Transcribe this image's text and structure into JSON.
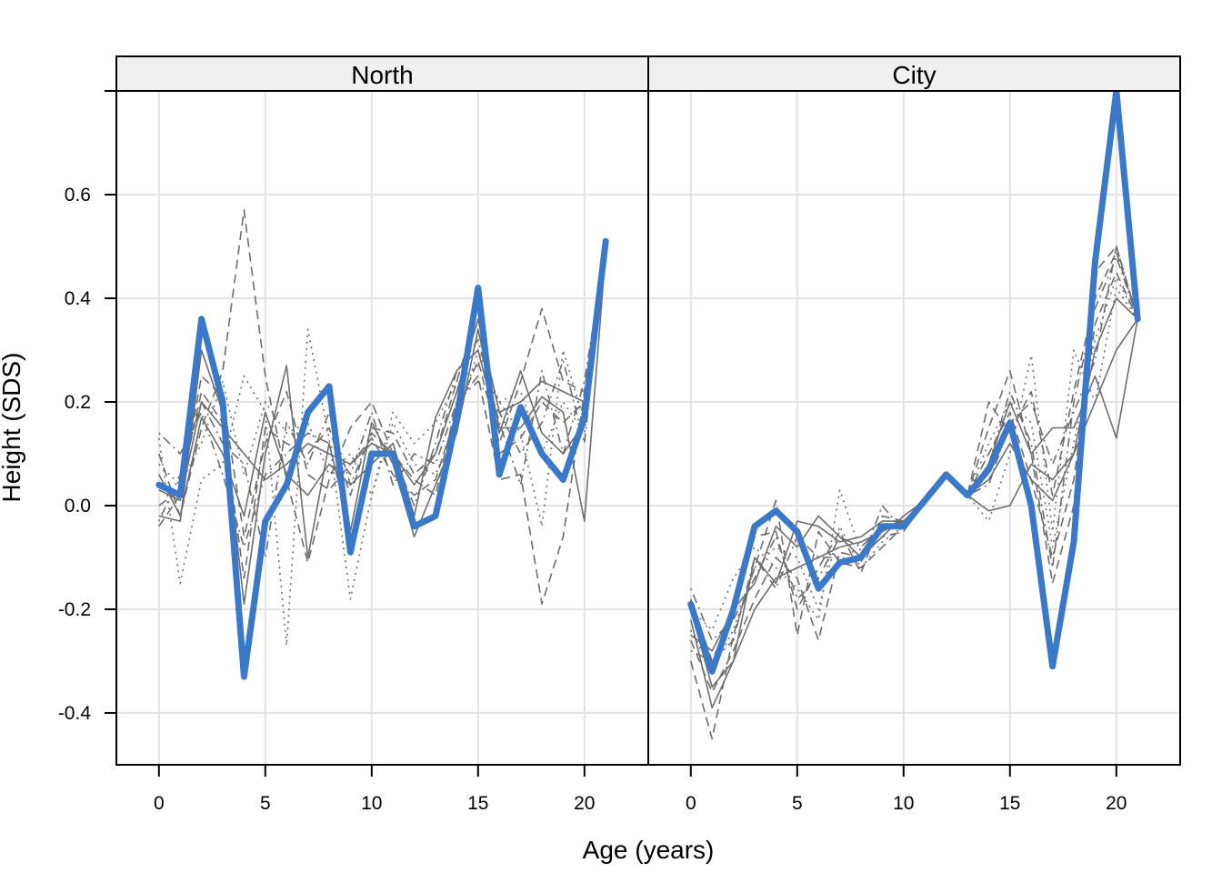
{
  "chart_data": {
    "type": "line",
    "xlabel": "Age (years)",
    "ylabel": "Height (SDS)",
    "xlim": [
      -2,
      23
    ],
    "ylim": [
      -0.5,
      0.8
    ],
    "x_ticks": [
      0,
      5,
      10,
      15,
      20
    ],
    "x_tick_labels": [
      "0",
      "5",
      "10",
      "15",
      "20"
    ],
    "y_ticks": [
      -0.4,
      -0.2,
      0.0,
      0.2,
      0.4,
      0.6
    ],
    "y_tick_labels": [
      "-0.4",
      "-0.2",
      "0.0",
      "0.2",
      "0.4",
      "0.6"
    ],
    "grid": true,
    "colors": {
      "highlight": "#3A78C9",
      "background_lines": "#6E6E6E",
      "grid": "#E3E3E3",
      "strip": "#F0F0F0"
    },
    "panels": [
      {
        "title": "North",
        "highlight": {
          "x": [
            0,
            1,
            2,
            3,
            4,
            5,
            6,
            7,
            8,
            9,
            10,
            11,
            12,
            13,
            14,
            15,
            16,
            17,
            18,
            19,
            20,
            21
          ],
          "y": [
            0.04,
            0.02,
            0.36,
            0.2,
            -0.33,
            -0.03,
            0.04,
            0.18,
            0.23,
            -0.09,
            0.1,
            0.1,
            -0.04,
            -0.02,
            0.17,
            0.42,
            0.06,
            0.19,
            0.1,
            0.05,
            0.17,
            0.51
          ]
        },
        "imputations": [
          {
            "style": "solid",
            "y": [
              0.03,
              0.01,
              0.2,
              0.15,
              0.1,
              0.05,
              0.08,
              0.12,
              0.1,
              0.08,
              0.12,
              0.1,
              0.04,
              0.1,
              0.22,
              0.36,
              0.18,
              0.2,
              0.24,
              0.22,
              0.2,
              0.49
            ]
          },
          {
            "style": "solid",
            "y": [
              -0.02,
              -0.03,
              0.3,
              0.18,
              -0.19,
              0.1,
              0.27,
              -0.1,
              0.12,
              -0.05,
              0.16,
              0.08,
              -0.06,
              0.04,
              0.14,
              0.34,
              0.15,
              0.15,
              0.21,
              0.18,
              -0.03,
              0.49
            ]
          },
          {
            "style": "solid",
            "y": [
              0.06,
              -0.02,
              0.17,
              0.1,
              -0.02,
              0.18,
              0.06,
              0.02,
              0.08,
              0.04,
              0.08,
              0.12,
              -0.02,
              0.17,
              0.26,
              0.3,
              0.14,
              0.26,
              0.14,
              0.1,
              0.16,
              0.5
            ]
          },
          {
            "style": "dashed",
            "y": [
              0.1,
              -0.02,
              0.15,
              0.26,
              0.57,
              0.25,
              0.05,
              -0.11,
              0.05,
              0.15,
              0.2,
              0.1,
              0.05,
              0.02,
              0.2,
              0.25,
              0.05,
              0.06,
              -0.19,
              -0.06,
              0.22,
              0.5
            ]
          },
          {
            "style": "dashed",
            "y": [
              0.0,
              0.03,
              0.22,
              0.16,
              -0.14,
              0.15,
              0.12,
              0.1,
              0.15,
              0.02,
              0.15,
              0.14,
              0.06,
              0.1,
              0.24,
              0.38,
              0.1,
              0.13,
              0.2,
              0.16,
              0.2,
              0.49
            ]
          },
          {
            "style": "dashed",
            "y": [
              -0.04,
              0.02,
              0.25,
              0.21,
              -0.06,
              0.12,
              0.22,
              0.06,
              0.03,
              0.08,
              0.13,
              0.06,
              0.02,
              0.05,
              0.18,
              0.28,
              0.12,
              0.24,
              0.38,
              0.24,
              0.22,
              0.5
            ]
          },
          {
            "style": "dotted",
            "y": [
              0.13,
              -0.15,
              0.05,
              0.08,
              0.25,
              0.18,
              -0.27,
              0.34,
              0.13,
              -0.18,
              0.02,
              0.18,
              0.12,
              0.16,
              0.24,
              0.27,
              0.2,
              0.14,
              -0.04,
              0.3,
              0.16,
              0.5
            ]
          },
          {
            "style": "dotted",
            "y": [
              0.08,
              0.04,
              0.12,
              0.24,
              0.06,
              0.2,
              0.14,
              0.16,
              0.06,
              0.1,
              0.02,
              0.16,
              0.08,
              0.06,
              0.16,
              0.3,
              0.2,
              0.22,
              0.1,
              0.2,
              0.14,
              0.5
            ]
          },
          {
            "style": "dotdash",
            "y": [
              0.14,
              0.1,
              0.18,
              0.06,
              -0.08,
              0.06,
              0.1,
              0.14,
              0.12,
              0.06,
              0.18,
              0.04,
              0.1,
              0.08,
              0.2,
              0.24,
              0.18,
              0.1,
              0.16,
              0.28,
              0.12,
              0.5
            ]
          },
          {
            "style": "dotdash",
            "y": [
              -0.03,
              0.06,
              0.2,
              0.12,
              0.08,
              -0.1,
              0.16,
              0.08,
              0.18,
              0.04,
              0.14,
              0.1,
              0.0,
              0.12,
              0.26,
              0.32,
              0.16,
              0.04,
              0.26,
              0.1,
              0.24,
              0.5
            ]
          }
        ]
      },
      {
        "title": "City",
        "highlight": {
          "x": [
            0,
            1,
            2,
            3,
            4,
            5,
            6,
            7,
            8,
            9,
            10,
            11,
            12,
            13,
            14,
            15,
            16,
            17,
            18,
            19,
            20,
            21
          ],
          "y": [
            -0.19,
            -0.32,
            -0.2,
            -0.04,
            -0.01,
            -0.05,
            -0.16,
            -0.11,
            -0.1,
            -0.04,
            -0.04,
            0.01,
            0.06,
            0.02,
            0.07,
            0.16,
            0.0,
            -0.31,
            -0.07,
            0.47,
            0.8,
            0.36
          ]
        },
        "imputations": [
          {
            "style": "solid",
            "y": [
              -0.22,
              -0.39,
              -0.3,
              -0.2,
              -0.14,
              -0.12,
              -0.1,
              -0.08,
              -0.07,
              -0.05,
              -0.03,
              0.01,
              0.06,
              0.02,
              0.05,
              0.12,
              0.05,
              0.01,
              0.1,
              0.2,
              0.3,
              0.36
            ]
          },
          {
            "style": "solid",
            "y": [
              -0.25,
              -0.28,
              -0.2,
              -0.15,
              -0.04,
              -0.08,
              -0.02,
              -0.06,
              -0.1,
              -0.06,
              -0.02,
              0.01,
              0.06,
              0.02,
              0.08,
              0.2,
              0.1,
              0.15,
              0.15,
              0.25,
              0.13,
              0.36
            ]
          },
          {
            "style": "solid",
            "y": [
              -0.2,
              -0.35,
              -0.3,
              -0.1,
              -0.15,
              -0.03,
              -0.04,
              -0.07,
              -0.06,
              -0.03,
              -0.03,
              0.01,
              0.06,
              0.02,
              -0.01,
              0.0,
              0.08,
              0.05,
              0.1,
              0.3,
              0.4,
              0.36
            ]
          },
          {
            "style": "dashed",
            "y": [
              -0.3,
              -0.45,
              -0.25,
              -0.12,
              0.01,
              -0.25,
              -0.05,
              -0.11,
              -0.12,
              -0.08,
              -0.04,
              0.01,
              0.06,
              0.02,
              0.15,
              0.26,
              0.1,
              -0.15,
              0.0,
              0.45,
              0.5,
              0.36
            ]
          },
          {
            "style": "dashed",
            "y": [
              -0.18,
              -0.3,
              -0.2,
              -0.06,
              -0.05,
              -0.2,
              -0.12,
              -0.05,
              -0.13,
              -0.02,
              -0.03,
              0.01,
              0.06,
              0.02,
              0.1,
              0.18,
              0.05,
              -0.1,
              0.05,
              0.35,
              0.45,
              0.36
            ]
          },
          {
            "style": "dashed",
            "y": [
              -0.26,
              -0.36,
              -0.28,
              -0.18,
              -0.1,
              -0.14,
              -0.26,
              -0.09,
              -0.1,
              -0.06,
              -0.05,
              0.01,
              0.06,
              0.02,
              0.2,
              0.14,
              0.22,
              0.02,
              0.22,
              0.4,
              0.49,
              0.36
            ]
          },
          {
            "style": "dotted",
            "y": [
              -0.2,
              -0.24,
              -0.14,
              -0.08,
              -0.12,
              -0.16,
              -0.22,
              0.03,
              -0.09,
              -0.05,
              -0.02,
              0.01,
              0.06,
              0.02,
              -0.03,
              0.1,
              0.29,
              -0.05,
              0.3,
              0.2,
              0.42,
              0.36
            ]
          },
          {
            "style": "dotted",
            "y": [
              -0.24,
              -0.32,
              -0.24,
              -0.12,
              -0.08,
              -0.1,
              -0.2,
              -0.04,
              -0.12,
              -0.07,
              -0.04,
              0.01,
              0.06,
              0.02,
              0.12,
              0.2,
              0.16,
              -0.08,
              0.12,
              0.32,
              0.44,
              0.36
            ]
          },
          {
            "style": "dotdash",
            "y": [
              -0.16,
              -0.26,
              -0.22,
              -0.14,
              -0.06,
              -0.18,
              -0.14,
              -0.06,
              -0.08,
              -0.04,
              -0.03,
              0.01,
              0.06,
              0.02,
              0.08,
              0.22,
              0.12,
              -0.12,
              0.2,
              0.38,
              0.48,
              0.36
            ]
          },
          {
            "style": "dotdash",
            "y": [
              -0.28,
              -0.3,
              -0.26,
              -0.1,
              -0.16,
              -0.06,
              -0.1,
              -0.1,
              -0.11,
              0.0,
              -0.05,
              0.01,
              0.06,
              0.02,
              0.04,
              0.16,
              0.2,
              0.08,
              0.18,
              0.28,
              0.5,
              0.36
            ]
          }
        ]
      }
    ]
  }
}
